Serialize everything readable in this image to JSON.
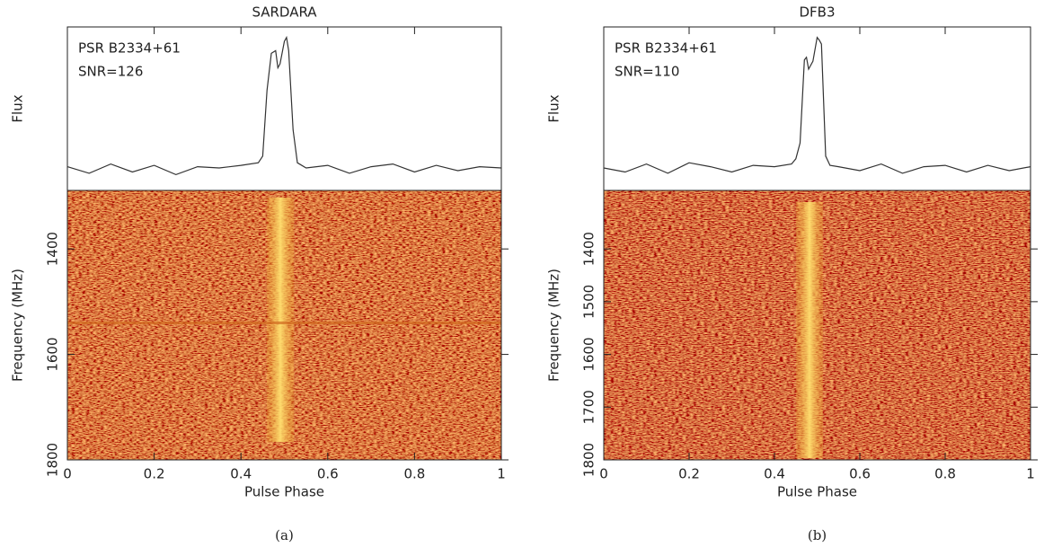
{
  "chart_data": [
    {
      "type": "line",
      "title": "SARDARA",
      "caption": "(a)",
      "annotations": [
        "PSR B2334+61",
        "SNR=126"
      ],
      "xlabel": "Pulse Phase",
      "ylabel": "Flux",
      "x": [
        0,
        0.05,
        0.1,
        0.15,
        0.2,
        0.25,
        0.3,
        0.35,
        0.4,
        0.44,
        0.45,
        0.46,
        0.47,
        0.48,
        0.485,
        0.49,
        0.5,
        0.505,
        0.51,
        0.52,
        0.53,
        0.55,
        0.6,
        0.65,
        0.7,
        0.75,
        0.8,
        0.85,
        0.9,
        0.95,
        1
      ],
      "values": [
        0.02,
        -0.03,
        0.04,
        -0.02,
        0.03,
        -0.04,
        0.02,
        0.01,
        0.03,
        0.05,
        0.1,
        0.6,
        0.88,
        0.9,
        0.77,
        0.8,
        0.97,
        1,
        0.9,
        0.3,
        0.05,
        0.01,
        0.03,
        -0.03,
        0.02,
        0.04,
        -0.02,
        0.03,
        -0.01,
        0.02,
        0.01
      ],
      "color": "#333333",
      "xlim": [
        0,
        1
      ],
      "xticks": [
        0,
        0.2,
        0.4,
        0.6,
        0.8,
        1
      ],
      "ylim": [
        -0.16,
        1.08
      ],
      "waterfall": {
        "ylabel": "Frequency (MHz)",
        "ylim": [
          1800,
          1289
        ],
        "yticks": [
          1400,
          1600,
          1800
        ]
      }
    },
    {
      "type": "line",
      "title": "DFB3",
      "caption": "(b)",
      "annotations": [
        "PSR B2334+61",
        "SNR=110"
      ],
      "xlabel": "Pulse Phase",
      "ylabel": "Flux",
      "x": [
        0,
        0.05,
        0.1,
        0.15,
        0.2,
        0.25,
        0.3,
        0.35,
        0.4,
        0.44,
        0.45,
        0.46,
        0.47,
        0.475,
        0.48,
        0.49,
        0.5,
        0.505,
        0.51,
        0.52,
        0.53,
        0.55,
        0.6,
        0.65,
        0.7,
        0.75,
        0.8,
        0.85,
        0.9,
        0.95,
        1
      ],
      "values": [
        0.01,
        -0.02,
        0.04,
        -0.03,
        0.05,
        0.02,
        -0.02,
        0.03,
        0.02,
        0.04,
        0.08,
        0.2,
        0.83,
        0.85,
        0.76,
        0.82,
        1,
        0.98,
        0.95,
        0.1,
        0.03,
        0.02,
        -0.01,
        0.04,
        -0.03,
        0.02,
        0.03,
        -0.02,
        0.03,
        -0.01,
        0.02
      ],
      "color": "#333333",
      "xlim": [
        0,
        1
      ],
      "xticks": [
        0,
        0.2,
        0.4,
        0.6,
        0.8,
        1
      ],
      "ylim": [
        -0.16,
        1.08
      ],
      "waterfall": {
        "ylabel": "Frequency (MHz)",
        "ylim": [
          1800,
          1289
        ],
        "yticks": [
          1400,
          1500,
          1600,
          1700,
          1800
        ]
      }
    }
  ]
}
